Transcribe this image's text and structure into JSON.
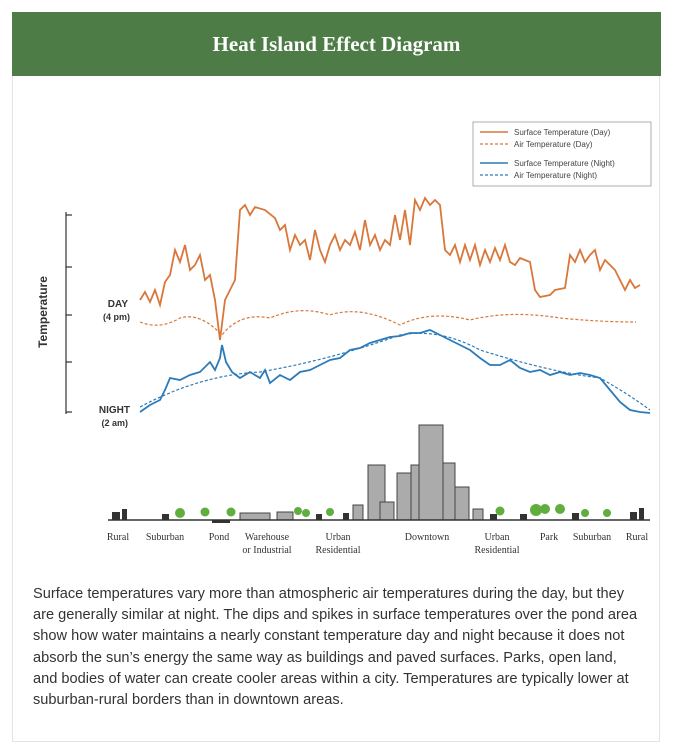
{
  "header": {
    "title": "Heat Island Effect Diagram"
  },
  "diagram": {
    "legend": [
      "Surface Temperature (Day)",
      "Air Temperature  (Day)",
      "Surface Temperature (Night)",
      "Air Temperature (Night)"
    ],
    "y_axis_label": "Temperature",
    "day_label": "DAY",
    "day_time": "(4 pm)",
    "night_label": "NIGHT",
    "night_time": "(2 am)",
    "zones": [
      [
        "Rural"
      ],
      [
        "Suburban"
      ],
      [
        "Pond"
      ],
      [
        "Warehouse",
        "or Industrial"
      ],
      [
        "Urban",
        "Residential"
      ],
      [
        "Downtown"
      ],
      [
        "Urban",
        "Residential"
      ],
      [
        "Park"
      ],
      [
        "Suburban"
      ],
      [
        "Rural"
      ]
    ]
  },
  "description": "Surface temperatures vary more than atmospheric air temperatures during the day, but they are generally similar at night. The dips and spikes in surface temperatures over the pond area show how water maintains a nearly constant temperature day and night because it does not absorb the sun’s energy the same way as buildings and paved surfaces. Parks, open land, and bodies of water can create cooler areas within a city. Temperatures are typically lower at suburban-rural borders than in downtown areas."
}
